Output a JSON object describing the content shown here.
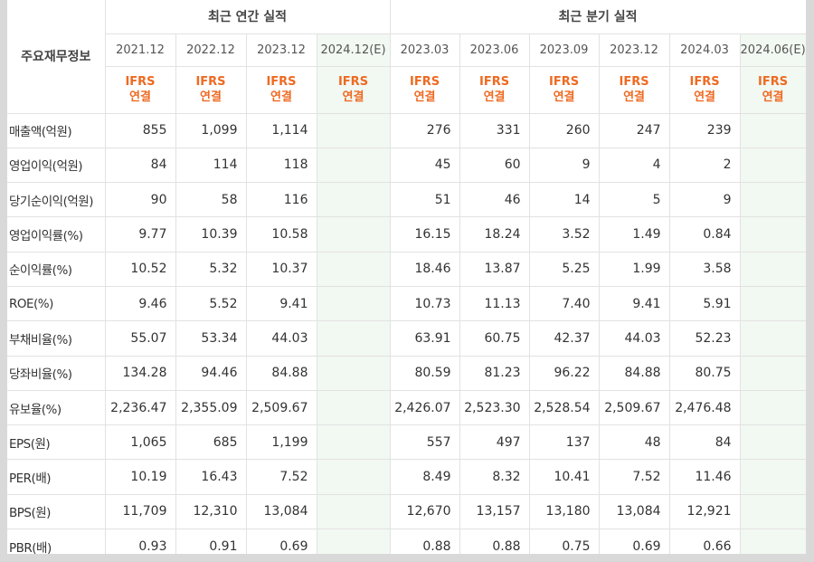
{
  "table": {
    "row_header_label": "주요재무정보",
    "groups": {
      "annual": "최근 연간 실적",
      "quarterly": "최근 분기 실적"
    },
    "periods": [
      "2021.12",
      "2022.12",
      "2023.12",
      "2024.12(E)",
      "2023.03",
      "2023.06",
      "2023.09",
      "2023.12",
      "2024.03",
      "2024.06(E)"
    ],
    "basis_top": "IFRS",
    "basis_bottom": "연결",
    "rows": [
      {
        "label": "매출액(억원)",
        "values": [
          "855",
          "1,099",
          "1,114",
          "",
          "276",
          "331",
          "260",
          "247",
          "239",
          ""
        ]
      },
      {
        "label": "영업이익(억원)",
        "values": [
          "84",
          "114",
          "118",
          "",
          "45",
          "60",
          "9",
          "4",
          "2",
          ""
        ]
      },
      {
        "label": "당기순이익(억원)",
        "values": [
          "90",
          "58",
          "116",
          "",
          "51",
          "46",
          "14",
          "5",
          "9",
          ""
        ]
      },
      {
        "label": "영업이익률(%)",
        "values": [
          "9.77",
          "10.39",
          "10.58",
          "",
          "16.15",
          "18.24",
          "3.52",
          "1.49",
          "0.84",
          ""
        ]
      },
      {
        "label": "순이익률(%)",
        "values": [
          "10.52",
          "5.32",
          "10.37",
          "",
          "18.46",
          "13.87",
          "5.25",
          "1.99",
          "3.58",
          ""
        ]
      },
      {
        "label": "ROE(%)",
        "values": [
          "9.46",
          "5.52",
          "9.41",
          "",
          "10.73",
          "11.13",
          "7.40",
          "9.41",
          "5.91",
          ""
        ]
      },
      {
        "label": "부채비율(%)",
        "values": [
          "55.07",
          "53.34",
          "44.03",
          "",
          "63.91",
          "60.75",
          "42.37",
          "44.03",
          "52.23",
          ""
        ]
      },
      {
        "label": "당좌비율(%)",
        "values": [
          "134.28",
          "94.46",
          "84.88",
          "",
          "80.59",
          "81.23",
          "96.22",
          "84.88",
          "80.75",
          ""
        ]
      },
      {
        "label": "유보율(%)",
        "values": [
          "2,236.47",
          "2,355.09",
          "2,509.67",
          "",
          "2,426.07",
          "2,523.30",
          "2,528.54",
          "2,509.67",
          "2,476.48",
          ""
        ]
      },
      {
        "label": "EPS(원)",
        "values": [
          "1,065",
          "685",
          "1,199",
          "",
          "557",
          "497",
          "137",
          "48",
          "84",
          ""
        ]
      },
      {
        "label": "PER(배)",
        "values": [
          "10.19",
          "16.43",
          "7.52",
          "",
          "8.49",
          "8.32",
          "10.41",
          "7.52",
          "11.46",
          ""
        ]
      },
      {
        "label": "BPS(원)",
        "values": [
          "11,709",
          "12,310",
          "13,084",
          "",
          "12,670",
          "13,157",
          "13,180",
          "13,084",
          "12,921",
          ""
        ]
      },
      {
        "label": "PBR(배)",
        "values": [
          "0.93",
          "0.91",
          "0.69",
          "",
          "0.88",
          "0.88",
          "0.75",
          "0.69",
          "0.66",
          ""
        ]
      }
    ]
  },
  "colors": {
    "ifrs_text": "#ee6a22",
    "estimate_bg": "#f2f8f2",
    "grid_line": "#e2e2e2"
  }
}
